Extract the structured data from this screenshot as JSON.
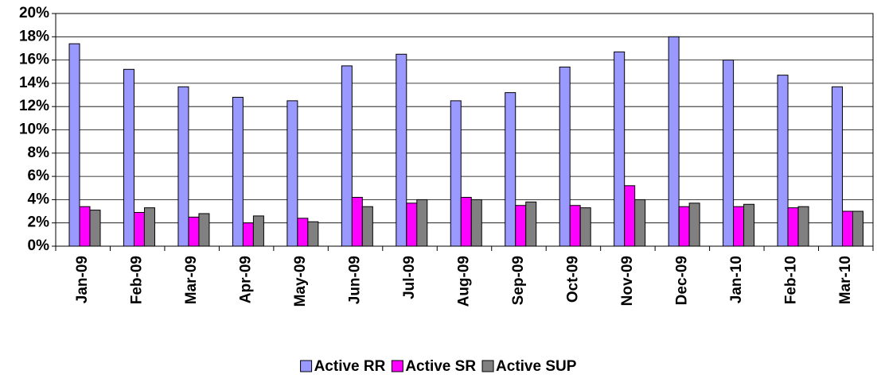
{
  "chart_data": {
    "type": "bar",
    "categories": [
      "Jan-09",
      "Feb-09",
      "Mar-09",
      "Apr-09",
      "May-09",
      "Jun-09",
      "Jul-09",
      "Aug-09",
      "Sep-09",
      "Oct-09",
      "Nov-09",
      "Dec-09",
      "Jan-10",
      "Feb-10",
      "Mar-10"
    ],
    "series": [
      {
        "name": "Active RR",
        "color": "#9999ff",
        "values": [
          17.4,
          15.2,
          13.7,
          12.8,
          12.5,
          15.5,
          16.5,
          12.5,
          13.2,
          15.4,
          16.7,
          18.0,
          16.0,
          14.7,
          13.7
        ]
      },
      {
        "name": "Active SR",
        "color": "#ff00ff",
        "values": [
          3.4,
          2.9,
          2.5,
          2.0,
          2.4,
          4.2,
          3.7,
          4.2,
          3.5,
          3.5,
          5.2,
          3.4,
          3.4,
          3.3,
          3.0
        ]
      },
      {
        "name": "Active SUP",
        "color": "#808080",
        "values": [
          3.1,
          3.3,
          2.8,
          2.6,
          2.1,
          3.4,
          4.0,
          4.0,
          3.8,
          3.3,
          4.0,
          3.7,
          3.6,
          3.4,
          3.0
        ]
      }
    ],
    "ylim": [
      0,
      20
    ],
    "yticks": [
      {
        "value": 0,
        "label": "0%"
      },
      {
        "value": 2,
        "label": "2%"
      },
      {
        "value": 4,
        "label": "4%"
      },
      {
        "value": 6,
        "label": "6%"
      },
      {
        "value": 8,
        "label": "8%"
      },
      {
        "value": 10,
        "label": "10%"
      },
      {
        "value": 12,
        "label": "12%"
      },
      {
        "value": 14,
        "label": "14%"
      },
      {
        "value": 16,
        "label": "16%"
      },
      {
        "value": 18,
        "label": "18%"
      },
      {
        "value": 20,
        "label": "20%"
      }
    ],
    "grid": true,
    "legend": "bottom"
  }
}
